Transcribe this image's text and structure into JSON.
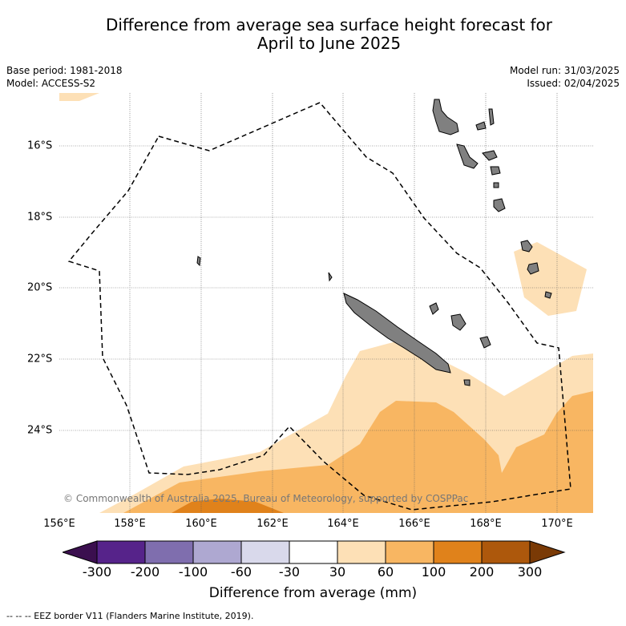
{
  "title_line1": "Difference from average sea surface height forecast for",
  "title_line2": "April to June 2025",
  "meta_left": {
    "base_period": "Base period: 1981-2018",
    "model": "Model: ACCESS-S2"
  },
  "meta_right": {
    "model_run": "Model run: 31/03/2025",
    "issued": "Issued: 02/04/2025"
  },
  "map": {
    "x_ticks": [
      "156°E",
      "158°E",
      "160°E",
      "162°E",
      "164°E",
      "166°E",
      "168°E",
      "170°E"
    ],
    "y_ticks": [
      "16°S",
      "18°S",
      "20°S",
      "22°S",
      "24°S"
    ],
    "copyright": "© Commonwealth of Australia 2025, Bureau of Meteorology, supported by COSPPac",
    "land_color": "#808080"
  },
  "colorbar": {
    "title": "Difference from average (mm)",
    "labels": [
      "-300",
      "-200",
      "-100",
      "-60",
      "-30",
      "30",
      "60",
      "100",
      "200",
      "300"
    ],
    "colors": [
      "#3b0f4f",
      "#56238a",
      "#7f6eae",
      "#aea8d1",
      "#d9d9eb",
      "#ffffff",
      "#fde0b6",
      "#f8b662",
      "#e0821b",
      "#ad580c",
      "#7a3a06"
    ]
  },
  "footnote": "-- -- -- EEZ border V11 (Flanders Marine Institute, 2019)."
}
